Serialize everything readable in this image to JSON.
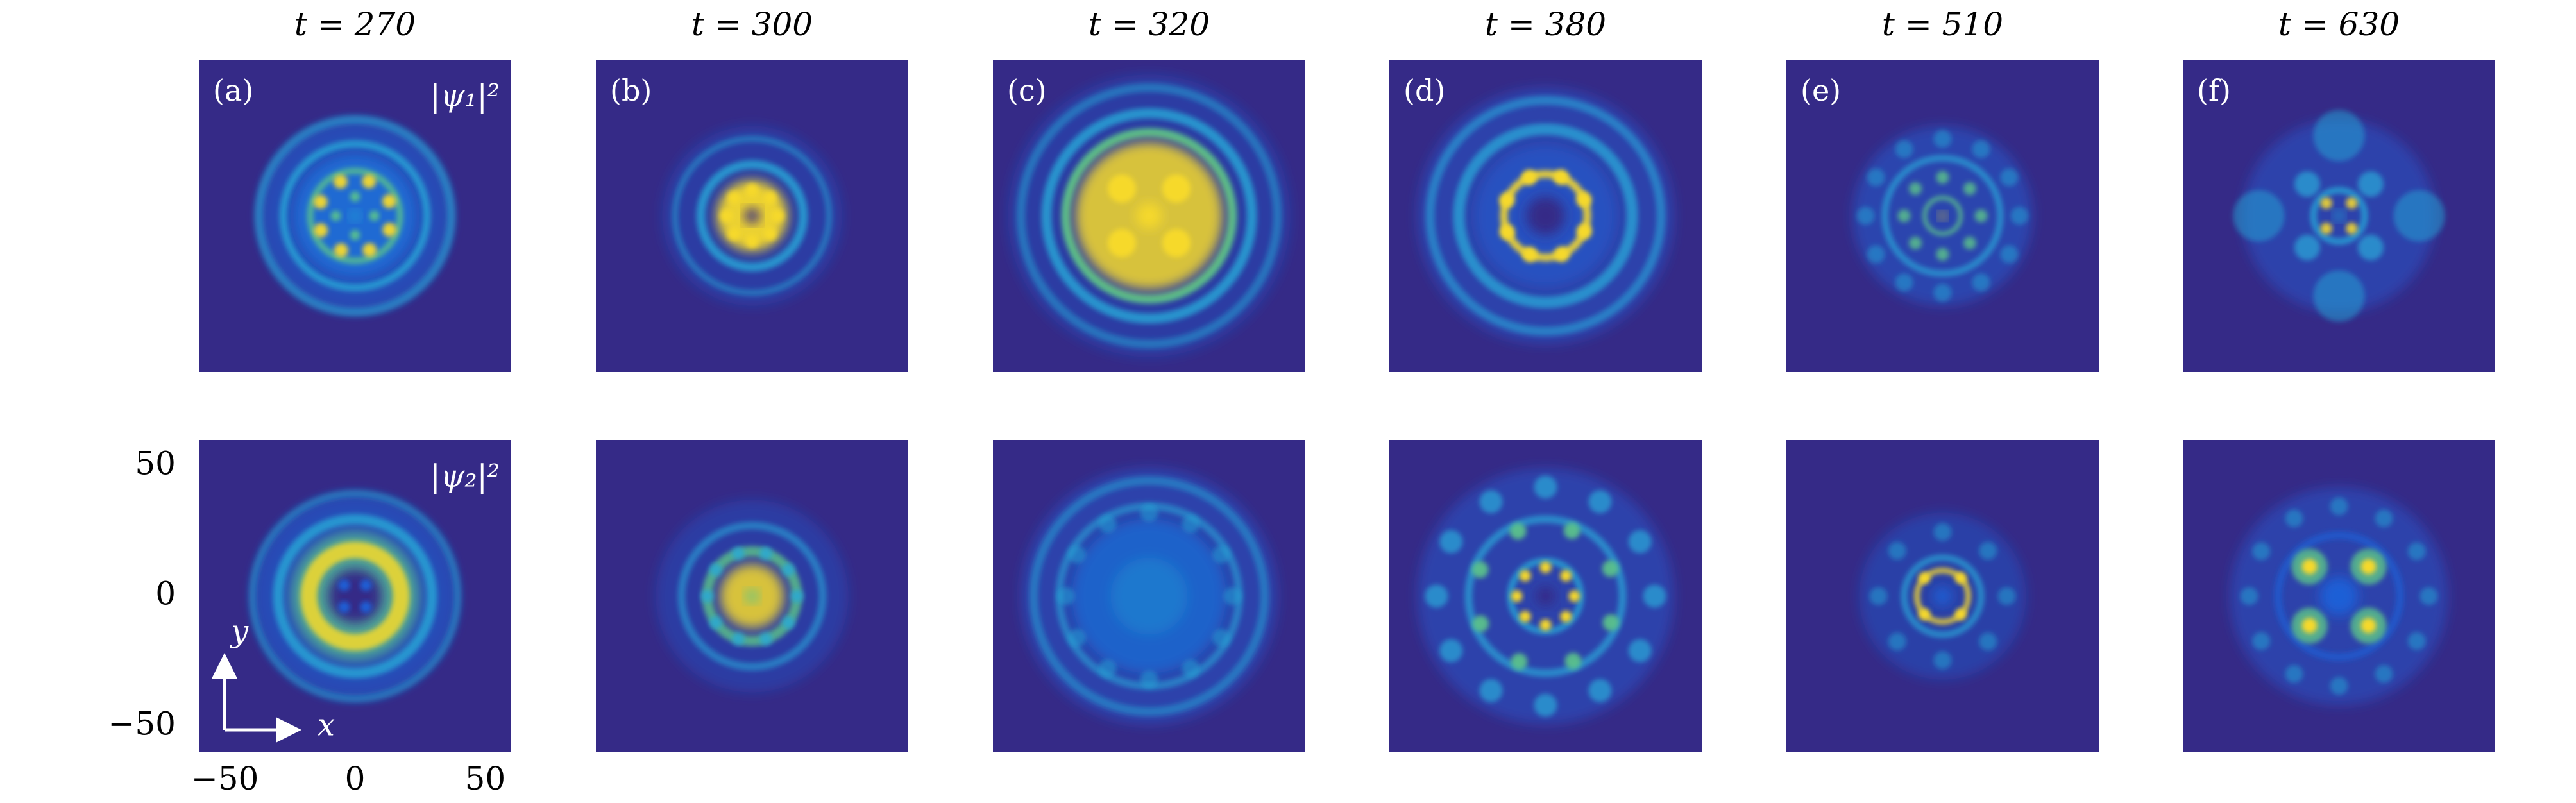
{
  "columns": [
    {
      "title": "t = 270",
      "label": "(a)"
    },
    {
      "title": "t = 300",
      "label": "(b)"
    },
    {
      "title": "t = 320",
      "label": "(c)"
    },
    {
      "title": "t = 380",
      "label": "(d)"
    },
    {
      "title": "t = 510",
      "label": "(e)"
    },
    {
      "title": "t = 630",
      "label": "(f)"
    }
  ],
  "rows": [
    {
      "label": "|ψ₁|²"
    },
    {
      "label": "|ψ₂|²"
    }
  ],
  "axes": {
    "xlabel": "x",
    "ylabel": "y",
    "xlim": [
      -60,
      60
    ],
    "ylim": [
      -60,
      60
    ],
    "xticks": [
      {
        "value": -50,
        "label": "−50"
      },
      0,
      50
    ],
    "yticks": [
      50,
      0,
      {
        "value": -50,
        "label": "−50"
      }
    ]
  }
}
